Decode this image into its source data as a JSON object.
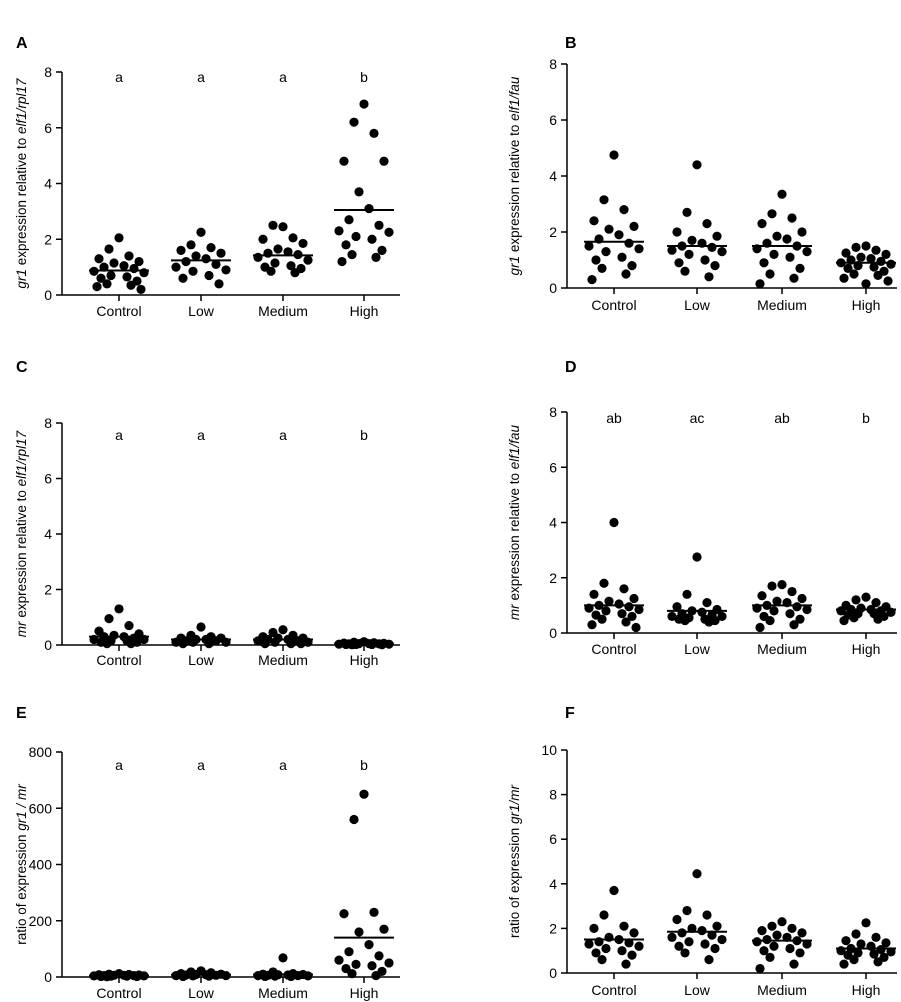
{
  "chart_data": [
    {
      "panel": "A",
      "type": "scatter",
      "ylabel_parts": [
        {
          "t": "gr1",
          "i": true
        },
        {
          "t": " expression relative to ",
          "i": false
        },
        {
          "t": "elf1/rpl17",
          "i": true
        }
      ],
      "ylim": [
        0,
        8
      ],
      "yticks": [
        0,
        2,
        4,
        6,
        8
      ],
      "categories": [
        "Control",
        "Low",
        "Medium",
        "High"
      ],
      "letters": [
        "a",
        "a",
        "a",
        "b"
      ],
      "means": [
        0.88,
        1.24,
        1.42,
        3.05
      ],
      "values": [
        [
          2.05,
          1.65,
          1.4,
          1.3,
          1.2,
          1.15,
          1.05,
          1.0,
          0.95,
          0.85,
          0.8,
          0.7,
          0.65,
          0.6,
          0.5,
          0.4,
          0.35,
          0.3,
          0.2
        ],
        [
          2.25,
          1.8,
          1.7,
          1.6,
          1.5,
          1.4,
          1.3,
          1.2,
          1.1,
          1.0,
          0.9,
          0.85,
          0.7,
          0.6,
          0.4
        ],
        [
          2.45,
          2.5,
          2.05,
          2.0,
          1.85,
          1.65,
          1.55,
          1.5,
          1.45,
          1.35,
          1.25,
          1.15,
          1.05,
          1.0,
          0.95,
          0.85,
          0.8
        ],
        [
          6.85,
          6.2,
          5.8,
          4.8,
          4.8,
          3.7,
          3.1,
          2.7,
          2.5,
          2.3,
          2.25,
          2.1,
          2.0,
          1.8,
          1.6,
          1.45,
          1.35,
          1.2
        ]
      ]
    },
    {
      "panel": "B",
      "type": "scatter",
      "ylabel_parts": [
        {
          "t": "gr1",
          "i": true
        },
        {
          "t": " expression relative to ",
          "i": false
        },
        {
          "t": "elf1/fau",
          "i": true
        }
      ],
      "ylim": [
        0,
        8
      ],
      "yticks": [
        0,
        2,
        4,
        6,
        8
      ],
      "categories": [
        "Control",
        "Low",
        "Medium",
        "High"
      ],
      "letters": [],
      "means": [
        1.65,
        1.5,
        1.5,
        0.9
      ],
      "values": [
        [
          4.75,
          3.15,
          2.8,
          2.4,
          2.2,
          2.1,
          1.9,
          1.75,
          1.6,
          1.5,
          1.4,
          1.3,
          1.1,
          1.0,
          0.8,
          0.7,
          0.5,
          0.3
        ],
        [
          4.4,
          2.7,
          2.3,
          2.0,
          1.85,
          1.7,
          1.6,
          1.5,
          1.45,
          1.35,
          1.3,
          1.2,
          1.0,
          0.9,
          0.8,
          0.6,
          0.4
        ],
        [
          3.35,
          2.65,
          2.5,
          2.3,
          2.0,
          1.85,
          1.75,
          1.6,
          1.5,
          1.4,
          1.3,
          1.2,
          1.1,
          0.9,
          0.7,
          0.5,
          0.35,
          0.15
        ],
        [
          1.5,
          1.45,
          1.35,
          1.25,
          1.2,
          1.1,
          1.05,
          1.0,
          0.95,
          0.9,
          0.85,
          0.8,
          0.75,
          0.7,
          0.6,
          0.5,
          0.45,
          0.35,
          0.25,
          0.15
        ]
      ]
    },
    {
      "panel": "C",
      "type": "scatter",
      "ylabel_parts": [
        {
          "t": "mr",
          "i": true
        },
        {
          "t": " expression relative to ",
          "i": false
        },
        {
          "t": "elf1/rpl17",
          "i": true
        }
      ],
      "ylim": [
        0,
        8
      ],
      "yticks": [
        0,
        2,
        4,
        6,
        8
      ],
      "categories": [
        "Control",
        "Low",
        "Medium",
        "High"
      ],
      "letters": [
        "a",
        "a",
        "a",
        "b"
      ],
      "means": [
        0.3,
        0.2,
        0.2,
        0.05
      ],
      "values": [
        [
          1.3,
          0.95,
          0.7,
          0.5,
          0.4,
          0.35,
          0.3,
          0.3,
          0.25,
          0.2,
          0.2,
          0.15,
          0.15,
          0.1,
          0.1,
          0.05,
          0.05
        ],
        [
          0.65,
          0.35,
          0.3,
          0.25,
          0.25,
          0.2,
          0.2,
          0.15,
          0.15,
          0.1,
          0.1,
          0.1,
          0.05,
          0.05
        ],
        [
          0.55,
          0.45,
          0.35,
          0.3,
          0.25,
          0.25,
          0.2,
          0.2,
          0.15,
          0.15,
          0.1,
          0.1,
          0.05,
          0.05,
          0.05
        ],
        [
          0.12,
          0.1,
          0.08,
          0.07,
          0.06,
          0.05,
          0.05,
          0.04,
          0.04,
          0.03,
          0.03,
          0.02,
          0.02,
          0.02,
          0.01,
          0.01
        ]
      ]
    },
    {
      "panel": "D",
      "type": "scatter",
      "ylabel_parts": [
        {
          "t": "mr",
          "i": true
        },
        {
          "t": " expression relative to ",
          "i": false
        },
        {
          "t": "elf1/fau",
          "i": true
        }
      ],
      "ylim": [
        0,
        8
      ],
      "yticks": [
        0,
        2,
        4,
        6,
        8
      ],
      "categories": [
        "Control",
        "Low",
        "Medium",
        "High"
      ],
      "letters": [
        "ab",
        "ac",
        "ab",
        "b"
      ],
      "means": [
        1.0,
        0.8,
        1.0,
        0.85
      ],
      "values": [
        [
          4.0,
          1.8,
          1.6,
          1.4,
          1.25,
          1.15,
          1.05,
          1.0,
          0.95,
          0.9,
          0.85,
          0.8,
          0.7,
          0.65,
          0.6,
          0.5,
          0.4,
          0.3,
          0.2
        ],
        [
          2.75,
          1.4,
          1.1,
          0.95,
          0.85,
          0.8,
          0.75,
          0.7,
          0.65,
          0.6,
          0.6,
          0.55,
          0.5,
          0.5,
          0.45,
          0.45,
          0.4
        ],
        [
          1.75,
          1.7,
          1.5,
          1.35,
          1.25,
          1.15,
          1.1,
          1.0,
          0.95,
          0.9,
          0.85,
          0.8,
          0.7,
          0.6,
          0.5,
          0.45,
          0.3,
          0.2
        ],
        [
          1.3,
          1.2,
          1.1,
          1.0,
          0.95,
          0.9,
          0.85,
          0.85,
          0.8,
          0.8,
          0.75,
          0.7,
          0.7,
          0.65,
          0.6,
          0.55,
          0.5,
          0.45
        ]
      ]
    },
    {
      "panel": "E",
      "type": "scatter",
      "ylabel_parts": [
        {
          "t": "ratio of expression ",
          "i": false
        },
        {
          "t": "gr1 / mr",
          "i": true
        }
      ],
      "ylim": [
        0,
        800
      ],
      "yticks": [
        0,
        200,
        400,
        600,
        800
      ],
      "categories": [
        "Control",
        "Low",
        "Medium",
        "High"
      ],
      "letters": [
        "a",
        "a",
        "a",
        "b"
      ],
      "means": [
        5,
        8,
        9,
        140
      ],
      "values": [
        [
          12,
          10,
          9,
          8,
          7,
          6,
          6,
          5,
          5,
          4,
          4,
          3,
          3,
          2,
          2,
          1
        ],
        [
          22,
          18,
          15,
          12,
          10,
          9,
          8,
          7,
          6,
          5,
          5,
          4,
          3,
          2
        ],
        [
          68,
          18,
          12,
          10,
          9,
          8,
          7,
          6,
          5,
          5,
          4,
          3,
          2,
          2
        ],
        [
          650,
          560,
          230,
          225,
          170,
          160,
          115,
          90,
          75,
          60,
          50,
          45,
          40,
          30,
          20,
          12,
          5
        ]
      ]
    },
    {
      "panel": "F",
      "type": "scatter",
      "ylabel_parts": [
        {
          "t": "ratio of expression  ",
          "i": false
        },
        {
          "t": "gr1/mr",
          "i": true
        }
      ],
      "ylim": [
        0,
        10
      ],
      "yticks": [
        0,
        2,
        4,
        6,
        8,
        10
      ],
      "categories": [
        "Control",
        "Low",
        "Medium",
        "High"
      ],
      "letters": [],
      "means": [
        1.5,
        1.85,
        1.45,
        1.1
      ],
      "values": [
        [
          3.7,
          2.6,
          2.1,
          2.0,
          1.8,
          1.6,
          1.5,
          1.4,
          1.35,
          1.3,
          1.2,
          1.1,
          1.0,
          0.9,
          0.8,
          0.6,
          0.4
        ],
        [
          4.45,
          2.8,
          2.6,
          2.4,
          2.1,
          2.0,
          1.9,
          1.8,
          1.7,
          1.6,
          1.5,
          1.4,
          1.3,
          1.2,
          1.1,
          0.9,
          0.6
        ],
        [
          2.3,
          2.1,
          2.0,
          1.9,
          1.8,
          1.7,
          1.6,
          1.5,
          1.45,
          1.4,
          1.3,
          1.2,
          1.1,
          1.0,
          0.9,
          0.7,
          0.4,
          0.2
        ],
        [
          2.25,
          1.75,
          1.6,
          1.45,
          1.35,
          1.3,
          1.2,
          1.1,
          1.05,
          1.0,
          0.95,
          0.9,
          0.85,
          0.8,
          0.7,
          0.6,
          0.5,
          0.4
        ]
      ]
    }
  ]
}
